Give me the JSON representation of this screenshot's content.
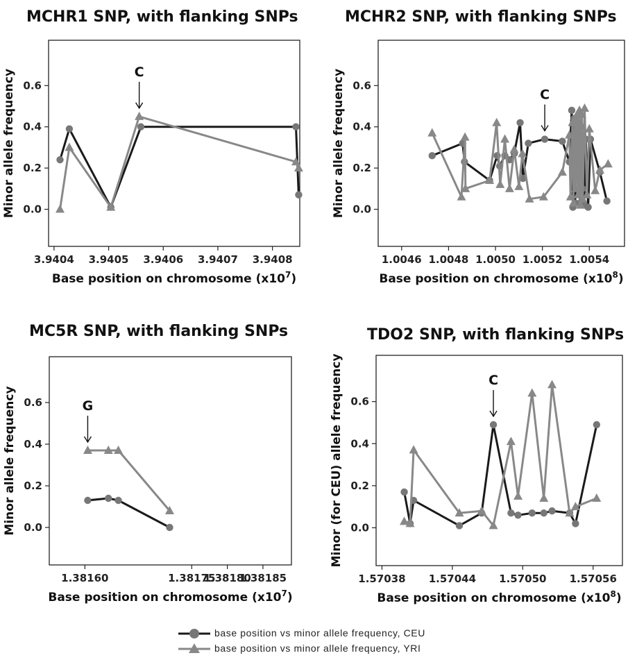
{
  "series_styles": {
    "ceu": {
      "color": "#1a1a1a",
      "marker": "circle-marker",
      "marker_color": "#777777"
    },
    "yri": {
      "color": "#888888",
      "marker": "triangle-marker",
      "marker_color": "#888888"
    }
  },
  "legend": [
    {
      "label": "base position vs minor allele frequency, CEU"
    },
    {
      "label": "base position vs minor allele frequency, YRI"
    }
  ],
  "chart_data": [
    {
      "type": "line",
      "title": "MCHR1 SNP, with flanking SNPs",
      "xlabel": "Base position on chromosome (x10",
      "xlabel_exp": "7",
      "ylabel": "Minor allele frequency",
      "xlim": [
        3.94039,
        3.94085
      ],
      "ylim": [
        -0.18,
        0.82
      ],
      "xticks": [
        3.9404,
        3.9405,
        3.9406,
        3.9407,
        3.9408
      ],
      "xtick_labels": [
        "3.9404",
        "3.9405",
        "3.9406",
        "3.9407",
        "3.9408"
      ],
      "yticks": [
        0.0,
        0.2,
        0.4,
        0.6
      ],
      "ytick_labels": [
        "0.0",
        "0.2",
        "0.4",
        "0.6"
      ],
      "annotation": {
        "text": "C",
        "x": 3.940556,
        "y": 0.45
      },
      "series": [
        {
          "key": "ceu",
          "x": [
            3.940411,
            3.940428,
            3.940504,
            3.940559,
            3.940843,
            3.940848
          ],
          "y": [
            0.24,
            0.39,
            0.01,
            0.4,
            0.4,
            0.07
          ]
        },
        {
          "key": "yri",
          "x": [
            3.940411,
            3.940428,
            3.940504,
            3.940556,
            3.940843,
            3.940848
          ],
          "y": [
            0.0,
            0.3,
            0.01,
            0.45,
            0.23,
            0.2
          ]
        }
      ]
    },
    {
      "type": "line",
      "title": "MCHR2 SNP, with flanking SNPs",
      "xlabel": "Base position on chromosome (x10",
      "xlabel_exp": "8",
      "ylabel": "Minor  allele frequency",
      "xlim": [
        1.0045,
        1.00555
      ],
      "ylim": [
        -0.18,
        0.82
      ],
      "xticks": [
        1.0046,
        1.0048,
        1.005,
        1.0052,
        1.0054
      ],
      "xtick_labels": [
        "1.0046",
        "1.0048",
        "1.0050",
        "1.0052",
        "1.0054"
      ],
      "yticks": [
        0.0,
        0.2,
        0.4,
        0.6
      ],
      "ytick_labels": [
        "0.0",
        "0.2",
        "0.4",
        "0.6"
      ],
      "annotation": {
        "text": "C",
        "x": 1.00521,
        "y": 0.34
      },
      "series": [
        {
          "key": "ceu",
          "x": [
            1.00473,
            1.00486,
            1.004868,
            1.004975,
            1.005007,
            1.005018,
            1.00504,
            1.00506,
            1.00508,
            1.005105,
            1.005117,
            1.00514,
            1.00521,
            1.005285,
            1.005315,
            1.005325,
            1.00533,
            1.005335,
            1.00534,
            1.005345,
            1.00535,
            1.005355,
            1.00536,
            1.005365,
            1.00537,
            1.005378,
            1.005385,
            1.005395,
            1.005405,
            1.005445,
            1.005475
          ],
          "y": [
            0.26,
            0.32,
            0.23,
            0.14,
            0.26,
            0.21,
            0.26,
            0.24,
            0.27,
            0.42,
            0.15,
            0.32,
            0.34,
            0.33,
            0.23,
            0.48,
            0.01,
            0.44,
            0.03,
            0.38,
            0.15,
            0.42,
            0.03,
            0.4,
            0.1,
            0.02,
            0.34,
            0.01,
            0.34,
            0.18,
            0.04
          ]
        },
        {
          "key": "yri",
          "x": [
            1.00473,
            1.004855,
            1.00487,
            1.004872,
            1.004975,
            1.005005,
            1.00502,
            1.00504,
            1.00506,
            1.00508,
            1.0051,
            1.005115,
            1.005145,
            1.005205,
            1.005285,
            1.005315,
            1.00532,
            1.005328,
            1.005332,
            1.005338,
            1.005342,
            1.005348,
            1.005352,
            1.005358,
            1.005362,
            1.005368,
            1.005372,
            1.00538,
            1.00539,
            1.0054,
            1.005425,
            1.005445,
            1.00548
          ],
          "y": [
            0.37,
            0.06,
            0.35,
            0.1,
            0.14,
            0.42,
            0.12,
            0.34,
            0.1,
            0.29,
            0.11,
            0.27,
            0.05,
            0.06,
            0.18,
            0.36,
            0.06,
            0.42,
            0.03,
            0.44,
            0.1,
            0.46,
            0.07,
            0.48,
            0.02,
            0.46,
            0.05,
            0.49,
            0.07,
            0.39,
            0.09,
            0.19,
            0.22
          ]
        }
      ]
    },
    {
      "type": "line",
      "title": "MC5R SNP, with flanking SNPs",
      "xlabel": "Base position on chromosome (x10",
      "xlabel_exp": "7",
      "ylabel": "Minor  allele frequency",
      "xlim": [
        1.38155,
        1.38189
      ],
      "ylim": [
        -0.18,
        0.82
      ],
      "xticks": [
        1.3816,
        1.38175,
        1.3818,
        1.38185
      ],
      "xtick_labels": [
        "1.38160",
        "1.38175",
        "1.38180",
        "1.38185"
      ],
      "yticks": [
        0.0,
        0.2,
        0.4,
        0.6
      ],
      "ytick_labels": [
        "0.0",
        "0.2",
        "0.4",
        "0.6"
      ],
      "annotation": {
        "text": "G",
        "x": 1.381604,
        "y": 0.37
      },
      "series": [
        {
          "key": "ceu",
          "x": [
            1.381604,
            1.381633,
            1.381647,
            1.381719
          ],
          "y": [
            0.13,
            0.14,
            0.13,
            0.0
          ]
        },
        {
          "key": "yri",
          "x": [
            1.381604,
            1.381633,
            1.381647,
            1.381719
          ],
          "y": [
            0.37,
            0.37,
            0.37,
            0.08
          ]
        }
      ]
    },
    {
      "type": "line",
      "title": "TDO2 SNP,  with flanking SNPs",
      "xlabel": "Base position on chromosome (x10",
      "xlabel_exp": "8",
      "ylabel": "Minor (for CEU) allele frequency",
      "xlim": [
        1.570375,
        1.570585
      ],
      "ylim": [
        -0.18,
        0.82
      ],
      "xticks": [
        1.57038,
        1.57044,
        1.5705,
        1.57056
      ],
      "xtick_labels": [
        "1.57038",
        "1.57044",
        "1.57050",
        "1.57056"
      ],
      "yticks": [
        0.0,
        0.2,
        0.4,
        0.6
      ],
      "ytick_labels": [
        "0.0",
        "0.2",
        "0.4",
        "0.6"
      ],
      "annotation": {
        "text": "C",
        "x": 1.570475,
        "y": 0.49
      },
      "series": [
        {
          "key": "ceu",
          "x": [
            1.570399,
            1.570404,
            1.570407,
            1.570446,
            1.570465,
            1.570475,
            1.57049,
            1.570496,
            1.570508,
            1.570518,
            1.570525,
            1.57054,
            1.570545,
            1.570563
          ],
          "y": [
            0.17,
            0.02,
            0.13,
            0.01,
            0.07,
            0.49,
            0.07,
            0.06,
            0.07,
            0.07,
            0.08,
            0.07,
            0.02,
            0.49
          ]
        },
        {
          "key": "yri",
          "x": [
            1.570399,
            1.570404,
            1.570407,
            1.570446,
            1.570465,
            1.570475,
            1.57049,
            1.570496,
            1.570508,
            1.570518,
            1.570525,
            1.57054,
            1.570545,
            1.570563
          ],
          "y": [
            0.03,
            0.02,
            0.37,
            0.07,
            0.08,
            0.01,
            0.41,
            0.15,
            0.64,
            0.14,
            0.68,
            0.07,
            0.1,
            0.14
          ]
        }
      ]
    }
  ]
}
